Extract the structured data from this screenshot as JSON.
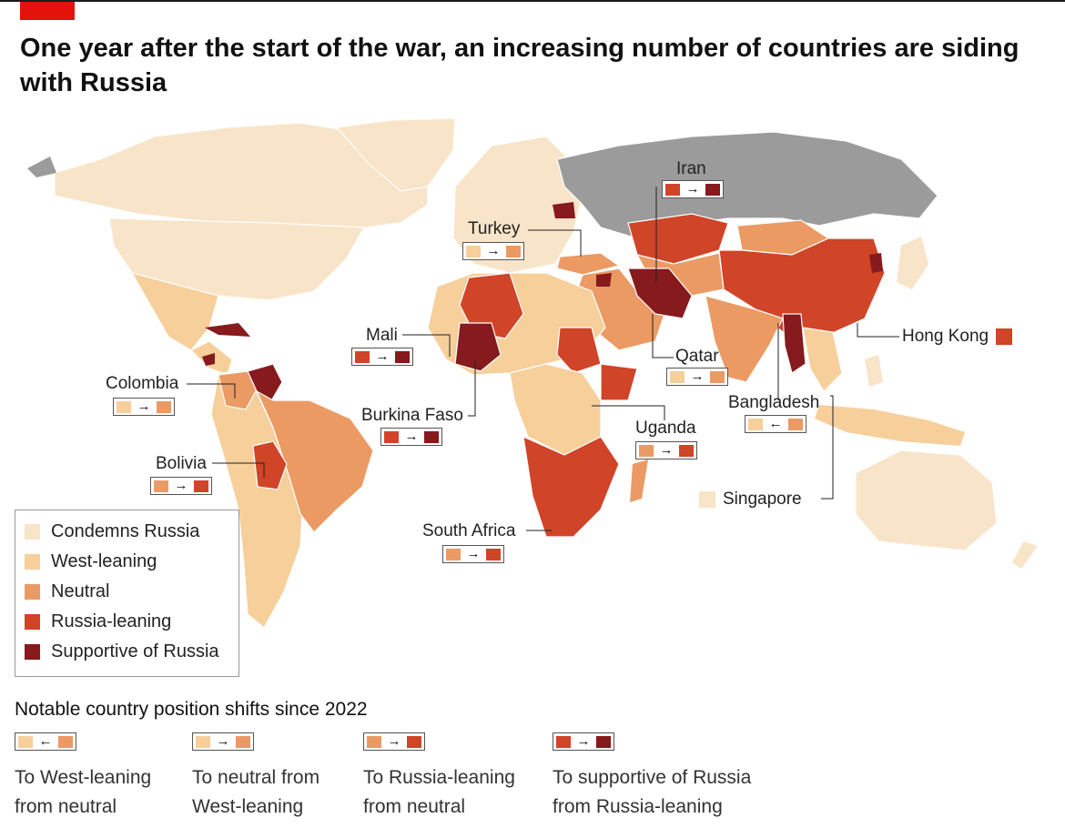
{
  "title": "One year after the start of the war, an increasing number of countries are siding with Russia",
  "colors": {
    "condemns": "#f8e4c8",
    "west_leaning": "#f6cf9b",
    "neutral": "#eb9a64",
    "russia_leaning": "#d04428",
    "supportive": "#861a1d",
    "russia": "#9b9b9b"
  },
  "legend": {
    "items": [
      {
        "label": "Condemns Russia",
        "color": "#f8e4c8"
      },
      {
        "label": "West-leaning",
        "color": "#f6cf9b"
      },
      {
        "label": "Neutral",
        "color": "#eb9a64"
      },
      {
        "label": "Russia-leaning",
        "color": "#d04428"
      },
      {
        "label": "Supportive of Russia",
        "color": "#861a1d"
      }
    ]
  },
  "callouts": {
    "iran": {
      "label": "Iran",
      "from": "#d04428",
      "to": "#861a1d",
      "arrow": "→"
    },
    "turkey": {
      "label": "Turkey",
      "from": "#f6cf9b",
      "to": "#eb9a64",
      "arrow": "→"
    },
    "mali": {
      "label": "Mali",
      "from": "#d04428",
      "to": "#861a1d",
      "arrow": "→"
    },
    "qatar": {
      "label": "Qatar",
      "from": "#f6cf9b",
      "to": "#eb9a64",
      "arrow": "→"
    },
    "colombia": {
      "label": "Colombia",
      "from": "#f6cf9b",
      "to": "#eb9a64",
      "arrow": "→"
    },
    "burkina": {
      "label": "Burkina Faso",
      "from": "#d04428",
      "to": "#861a1d",
      "arrow": "→"
    },
    "uganda": {
      "label": "Uganda",
      "from": "#eb9a64",
      "to": "#d04428",
      "arrow": "→"
    },
    "bangladesh": {
      "label": "Bangladesh",
      "from": "#f6cf9b",
      "to": "#eb9a64",
      "arrow": "←"
    },
    "bolivia": {
      "label": "Bolivia",
      "from": "#eb9a64",
      "to": "#d04428",
      "arrow": "→"
    },
    "south_africa": {
      "label": "South Africa",
      "from": "#eb9a64",
      "to": "#d04428",
      "arrow": "→"
    },
    "hong_kong": {
      "label": "Hong Kong",
      "color": "#d04428"
    },
    "singapore": {
      "label": "Singapore",
      "color": "#f8e4c8"
    }
  },
  "shifts": {
    "title": "Notable country position shifts since 2022",
    "items": [
      {
        "line1": "To West-leaning",
        "line2": "from neutral",
        "from": "#f6cf9b",
        "to": "#eb9a64",
        "arrow": "←"
      },
      {
        "line1": "To neutral from",
        "line2": "West-leaning",
        "from": "#f6cf9b",
        "to": "#eb9a64",
        "arrow": "→"
      },
      {
        "line1": "To Russia-leaning",
        "line2": "from neutral",
        "from": "#eb9a64",
        "to": "#d04428",
        "arrow": "→"
      },
      {
        "line1": "To supportive of Russia",
        "line2": "from Russia-leaning",
        "from": "#d04428",
        "to": "#861a1d",
        "arrow": "→"
      }
    ]
  }
}
